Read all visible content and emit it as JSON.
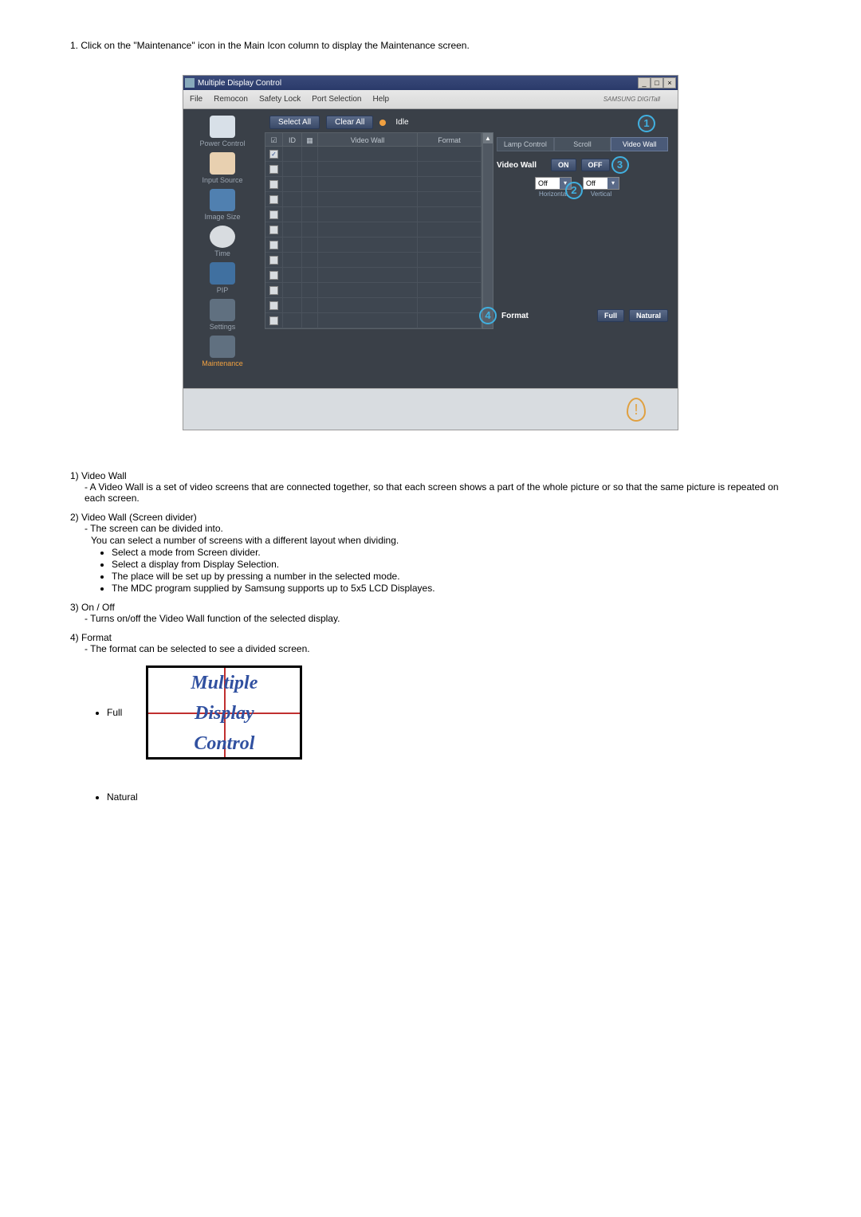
{
  "intro": "1.  Click on the \"Maintenance\" icon in the Main Icon column to display the Maintenance screen.",
  "window": {
    "title": "Multiple Display Control",
    "menu": [
      "File",
      "Remocon",
      "Safety Lock",
      "Port Selection",
      "Help"
    ],
    "brand": "SAMSUNG DIGITall"
  },
  "sidebar": [
    {
      "label": "Power Control",
      "cls": "pc"
    },
    {
      "label": "Input Source",
      "cls": "inp"
    },
    {
      "label": "Image Size",
      "cls": "img"
    },
    {
      "label": "Time",
      "cls": "tim"
    },
    {
      "label": "PIP",
      "cls": "pip"
    },
    {
      "label": "Settings",
      "cls": "set"
    },
    {
      "label": "Maintenance",
      "cls": "mnt",
      "active": true
    }
  ],
  "topbuttons": {
    "select_all": "Select All",
    "clear_all": "Clear All",
    "idle": "Idle"
  },
  "grid": {
    "headers": {
      "id": "ID",
      "vw": "Video Wall",
      "fmt": "Format"
    },
    "rows": 12
  },
  "tabs": {
    "lamp": "Lamp Control",
    "scroll": "Scroll",
    "vw": "Video Wall"
  },
  "panel": {
    "videowall_label": "Video Wall",
    "on": "ON",
    "off": "OFF",
    "dd_h": {
      "value": "Off",
      "label": "Horizontal"
    },
    "dd_v": {
      "value": "Off",
      "label": "Vertical"
    },
    "format_label": "Format",
    "full": "Full",
    "natural": "Natural"
  },
  "callouts": {
    "c1": "1",
    "c2": "2",
    "c3": "3",
    "c4": "4"
  },
  "desc": {
    "i1": {
      "title": "1)  Video Wall",
      "d1": "- A Video Wall is a set of video screens that are connected together, so that each screen shows a part of the whole picture or so that the same picture is repeated on each screen."
    },
    "i2": {
      "title": "2)  Video Wall (Screen divider)",
      "d1": "- The screen can be divided into.",
      "d2": "You can select a number of screens with a different layout when dividing.",
      "b1": "Select a mode from Screen divider.",
      "b2": "Select a display from Display Selection.",
      "b3": "The place will be set up by pressing a number in the selected mode.",
      "b4": "The MDC program supplied by Samsung supports up to 5x5 LCD Displayes."
    },
    "i3": {
      "title": "3)  On / Off",
      "d1": "- Turns on/off the Video Wall function of the selected display."
    },
    "i4": {
      "title": "4)  Format",
      "d1": "- The format can be selected to see a divided screen.",
      "full": "Full",
      "natural": "Natural",
      "fig_w1": "Multiple",
      "fig_w2": "Display",
      "fig_w3": "Control"
    }
  }
}
